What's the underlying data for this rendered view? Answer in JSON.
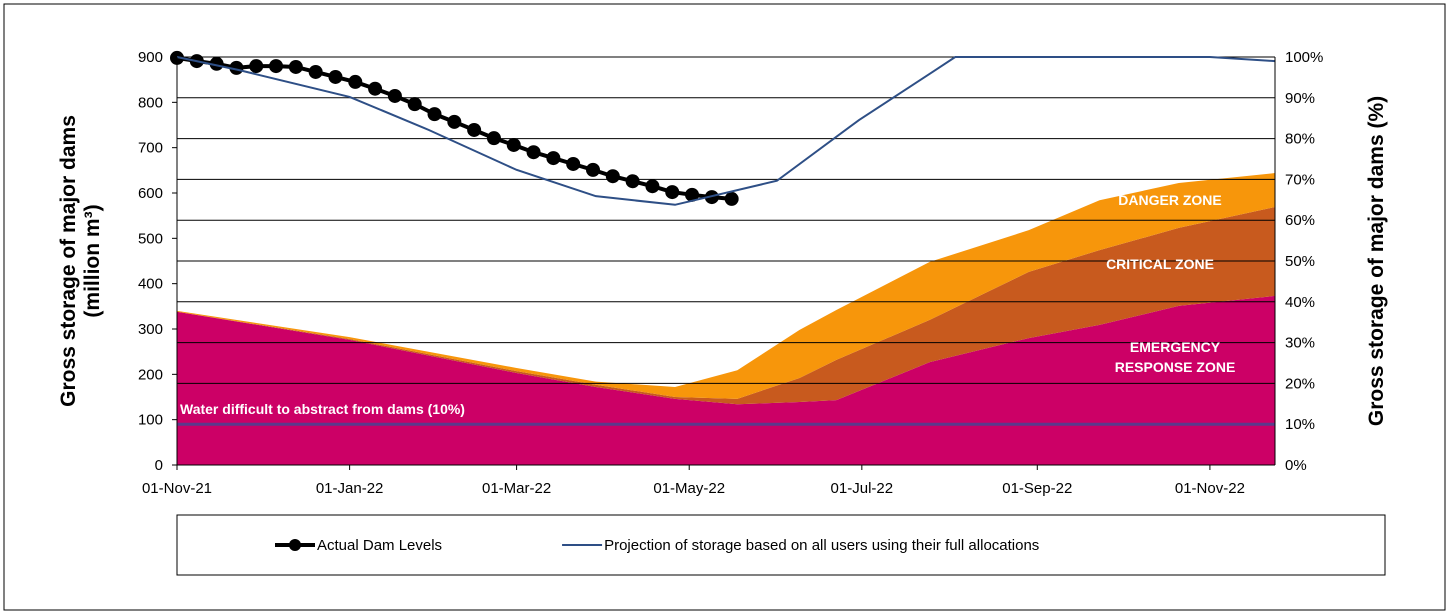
{
  "chart_data": {
    "type": "area",
    "ylabel": "Gross storage of major dams (million m³)",
    "y2label": "Gross storage of major dams (%)",
    "xlim": [
      "2021-11-01",
      "2022-11-24"
    ],
    "xticks": [
      {
        "value": "2021-11-01",
        "label": "01-Nov-21"
      },
      {
        "value": "2022-01-01",
        "label": "01-Jan-22"
      },
      {
        "value": "2022-03-01",
        "label": "01-Mar-22"
      },
      {
        "value": "2022-05-01",
        "label": "01-May-22"
      },
      {
        "value": "2022-07-01",
        "label": "01-Jul-22"
      },
      {
        "value": "2022-09-01",
        "label": "01-Sep-22"
      },
      {
        "value": "2022-11-01",
        "label": "01-Nov-22"
      }
    ],
    "ylim": [
      0,
      900
    ],
    "yticks": [
      0,
      100,
      200,
      300,
      400,
      500,
      600,
      700,
      800,
      900
    ],
    "y2lim": [
      0,
      100
    ],
    "y2ticks": [
      {
        "value": 0,
        "label": "0%"
      },
      {
        "value": 10,
        "label": "10%"
      },
      {
        "value": 20,
        "label": "20%"
      },
      {
        "value": 30,
        "label": "30%"
      },
      {
        "value": 40,
        "label": "40%"
      },
      {
        "value": 50,
        "label": "50%"
      },
      {
        "value": 60,
        "label": "60%"
      },
      {
        "value": 70,
        "label": "70%"
      },
      {
        "value": 80,
        "label": "80%"
      },
      {
        "value": 90,
        "label": "90%"
      },
      {
        "value": 100,
        "label": "100%"
      }
    ],
    "grid": true,
    "threshold": {
      "value": 10,
      "axis": "y2",
      "label": "Water difficult to abstract from dams (10%)",
      "color": "#5b3a8c"
    },
    "series": [
      {
        "name": "EMERGENCY RESPONSE ZONE",
        "type": "area",
        "color": "#cc0066",
        "x": [
          "2021-11-01",
          "2022-01-01",
          "2022-03-01",
          "2022-03-29",
          "2022-04-26",
          "2022-05-18",
          "2022-06-09",
          "2022-06-22",
          "2022-07-25",
          "2022-08-29",
          "2022-09-23",
          "2022-10-21",
          "2022-11-24"
        ],
        "values": [
          338,
          276,
          203,
          172,
          146,
          134,
          139,
          143,
          227,
          280,
          309,
          351,
          373
        ]
      },
      {
        "name": "CRITICAL ZONE",
        "type": "area",
        "color": "#c85a1e",
        "x": [
          "2021-11-01",
          "2022-01-01",
          "2022-03-01",
          "2022-03-29",
          "2022-04-26",
          "2022-05-18",
          "2022-06-09",
          "2022-06-22",
          "2022-07-25",
          "2022-08-29",
          "2022-09-23",
          "2022-10-21",
          "2022-11-24"
        ],
        "values": [
          0,
          2,
          4,
          5,
          4,
          12,
          53,
          89,
          93,
          146,
          165,
          172,
          196
        ]
      },
      {
        "name": "DANGER ZONE",
        "type": "area",
        "color": "#f7960b",
        "x": [
          "2021-11-01",
          "2022-01-01",
          "2022-03-01",
          "2022-03-29",
          "2022-04-26",
          "2022-05-18",
          "2022-06-09",
          "2022-06-22",
          "2022-07-25",
          "2022-08-29",
          "2022-09-23",
          "2022-10-21",
          "2022-11-24"
        ],
        "values": [
          2,
          4,
          7,
          7,
          22,
          63,
          106,
          110,
          128,
          92,
          110,
          99,
          75
        ]
      },
      {
        "name": "Actual Dam Levels",
        "type": "line",
        "markers": true,
        "color": "#000000",
        "x": [
          "2021-11-01",
          "2021-11-08",
          "2021-11-15",
          "2021-11-22",
          "2021-11-29",
          "2021-12-06",
          "2021-12-13",
          "2021-12-20",
          "2021-12-27",
          "2022-01-03",
          "2022-01-10",
          "2022-01-17",
          "2022-01-24",
          "2022-01-31",
          "2022-02-07",
          "2022-02-14",
          "2022-02-21",
          "2022-02-28",
          "2022-03-07",
          "2022-03-14",
          "2022-03-21",
          "2022-03-28",
          "2022-04-04",
          "2022-04-11",
          "2022-04-18",
          "2022-04-25",
          "2022-05-02",
          "2022-05-09",
          "2022-05-16"
        ],
        "values": [
          898,
          891,
          885,
          876,
          880,
          880,
          878,
          867,
          856,
          845,
          830,
          814,
          796,
          774,
          757,
          739,
          721,
          706,
          690,
          677,
          664,
          651,
          637,
          626,
          615,
          602,
          596,
          591,
          587
        ]
      },
      {
        "name": "Projection of storage based on all users using their full allocations",
        "type": "line",
        "markers": false,
        "color": "#2e4f86",
        "x": [
          "2021-11-01",
          "2021-11-23",
          "2022-01-01",
          "2022-01-29",
          "2022-03-01",
          "2022-03-29",
          "2022-04-26",
          "2022-06-01",
          "2022-06-30",
          "2022-07-26",
          "2022-08-03",
          "2022-11-01",
          "2022-11-24"
        ],
        "values": [
          900,
          871,
          812,
          739,
          651,
          593,
          574,
          627,
          761,
          867,
          900,
          900,
          891
        ]
      }
    ]
  }
}
